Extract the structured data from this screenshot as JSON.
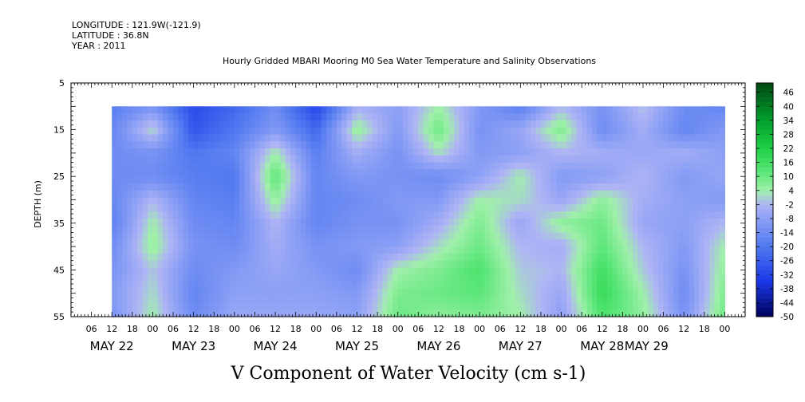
{
  "header": {
    "longitude": "LONGITUDE : 121.9W(-121.9)",
    "latitude": "LATITUDE : 36.8N",
    "year": "YEAR : 2011"
  },
  "chart_data": {
    "type": "heatmap",
    "title": "Hourly Gridded MBARI Mooring M0 Sea Water Temperature and Salinity Observations",
    "xlabel": "V Component of Water Velocity (cm s-1)",
    "ylabel": "DEPTH (m)",
    "ylim": [
      55,
      5
    ],
    "y_ticks": [
      5,
      15,
      25,
      35,
      45,
      55
    ],
    "x_hour_ticks": [
      "06",
      "12",
      "18",
      "00",
      "06",
      "12",
      "18",
      "00",
      "06",
      "12",
      "18",
      "00",
      "06",
      "12",
      "18",
      "00",
      "06",
      "12",
      "18",
      "00",
      "06",
      "12",
      "18",
      "00",
      "06",
      "12",
      "18",
      "00",
      "06",
      "12",
      "18",
      "00"
    ],
    "x_day_labels": [
      "MAY 22",
      "MAY 23",
      "MAY 24",
      "MAY 25",
      "MAY 26",
      "MAY 27",
      "MAY 28",
      "MAY 29"
    ],
    "data_depth_range": [
      10,
      55
    ],
    "data_time_range_hours": [
      12,
      192
    ],
    "colorbar": {
      "labels": [
        46,
        40,
        34,
        28,
        22,
        16,
        10,
        4,
        -2,
        -8,
        -14,
        -20,
        -26,
        -32,
        -38,
        -44,
        -50
      ],
      "range": [
        -50,
        50
      ]
    },
    "field": {
      "depths": [
        10,
        15,
        20,
        25,
        30,
        35,
        40,
        45,
        50,
        55
      ],
      "hours": [
        12,
        24,
        36,
        48,
        60,
        72,
        84,
        96,
        108,
        120,
        132,
        144,
        156,
        168,
        180,
        192
      ],
      "values": [
        [
          -18,
          -12,
          -30,
          -24,
          -14,
          -32,
          -4,
          -8,
          4,
          -10,
          -18,
          -2,
          -12,
          0,
          -14,
          -16
        ],
        [
          -16,
          2,
          -28,
          -20,
          -10,
          -24,
          6,
          -10,
          10,
          -12,
          -6,
          8,
          -14,
          -4,
          -16,
          -10
        ],
        [
          -14,
          -12,
          -20,
          -16,
          4,
          -18,
          -4,
          -12,
          2,
          -10,
          -8,
          -2,
          -4,
          -6,
          -4,
          -8
        ],
        [
          -14,
          -14,
          -18,
          -20,
          12,
          -16,
          -10,
          -12,
          -14,
          -8,
          4,
          -10,
          -8,
          -2,
          -10,
          -6
        ],
        [
          -16,
          -2,
          -16,
          -18,
          6,
          -16,
          -14,
          -10,
          -10,
          4,
          2,
          -6,
          6,
          -4,
          -8,
          -10
        ],
        [
          -18,
          4,
          -14,
          -16,
          -2,
          -16,
          -12,
          -12,
          -4,
          8,
          -6,
          6,
          10,
          -6,
          -8,
          -2
        ],
        [
          -14,
          6,
          -12,
          -14,
          -4,
          -12,
          -10,
          -8,
          2,
          10,
          -2,
          -4,
          12,
          -2,
          -10,
          4
        ],
        [
          -12,
          0,
          -14,
          -10,
          -6,
          -10,
          -14,
          4,
          8,
          14,
          0,
          -2,
          16,
          0,
          -12,
          6
        ],
        [
          -10,
          2,
          -16,
          -8,
          -8,
          -8,
          -10,
          8,
          10,
          12,
          2,
          -6,
          18,
          4,
          -14,
          8
        ],
        [
          -12,
          4,
          -14,
          -6,
          -6,
          -6,
          -8,
          10,
          6,
          8,
          4,
          -8,
          14,
          6,
          -12,
          10
        ]
      ]
    }
  }
}
